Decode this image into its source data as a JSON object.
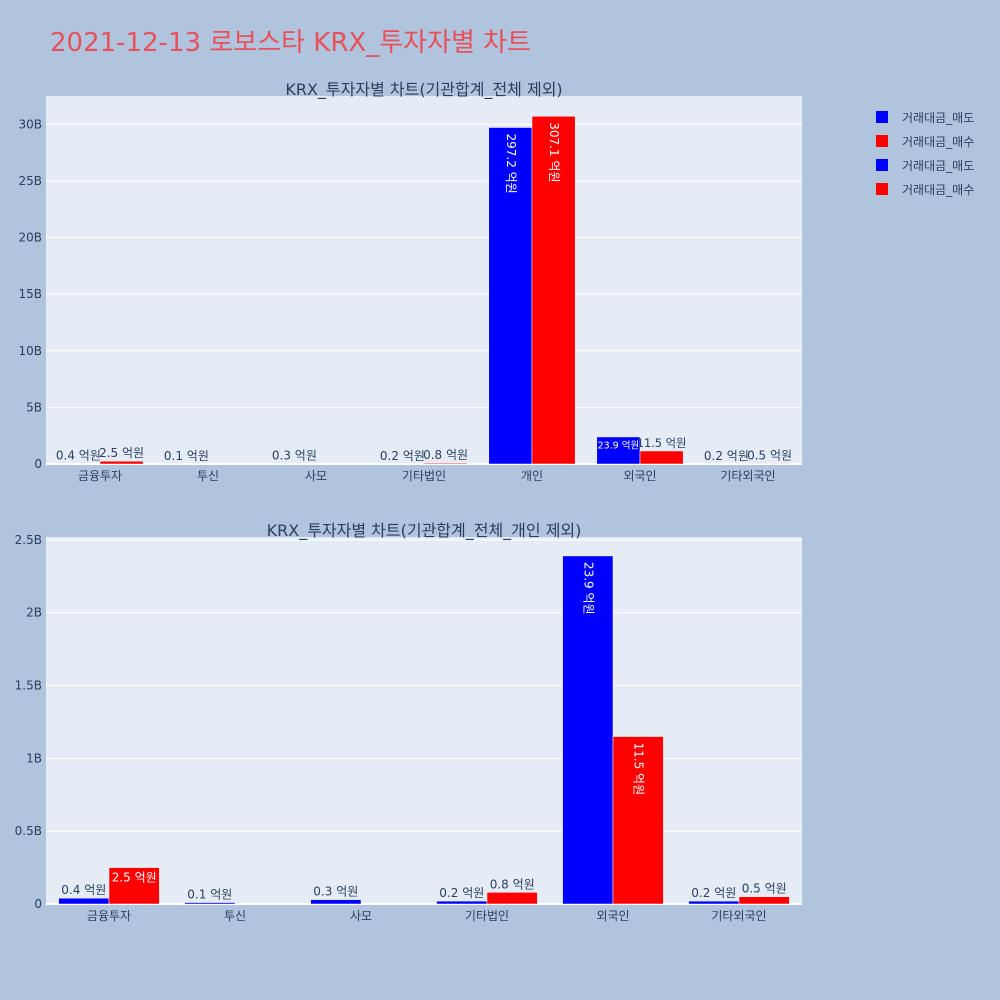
{
  "page": {
    "title": "2021-12-13 로보스타 KRX_투자자별 차트",
    "background": "#b0c4de",
    "plot_background": "#e5ecf6",
    "title_color": "#e8505b"
  },
  "legend": {
    "placement": "right",
    "items": [
      {
        "label": "거래대금_매도",
        "color": "#0000ff"
      },
      {
        "label": "거래대금_매수",
        "color": "#ff0000"
      },
      {
        "label": "거래대금_매도",
        "color": "#0000ff"
      },
      {
        "label": "거래대금_매수",
        "color": "#ff0000"
      }
    ]
  },
  "chart_data": [
    {
      "type": "bar",
      "title": "KRX_투자자별 차트(기관합계_전체 제외)",
      "categories": [
        "금융투자",
        "투신",
        "사모",
        "기타법인",
        "개인",
        "외국인",
        "기타외국인"
      ],
      "ylim": [
        0,
        32.5
      ],
      "yticks": [
        0,
        5,
        10,
        15,
        20,
        25,
        30
      ],
      "ytick_labels": [
        "0",
        "5B",
        "10B",
        "15B",
        "20B",
        "25B",
        "30B"
      ],
      "grid": true,
      "series": [
        {
          "name": "거래대금_매도",
          "color": "#0000ff",
          "values": [
            0.04,
            0.01,
            0.03,
            0.02,
            29.72,
            2.39,
            0.02
          ],
          "labels": [
            "0.4 억원",
            "0.1 억원",
            "0.3 억원",
            "0.2 억원",
            "297.2 억원",
            "23.9 억원",
            "0.2 억원"
          ]
        },
        {
          "name": "거래대금_매수",
          "color": "#ff0000",
          "values": [
            0.25,
            0,
            0,
            0.08,
            30.71,
            1.15,
            0.05
          ],
          "labels": [
            "2.5 억원",
            "",
            "",
            "0.8 억원",
            "307.1 억원",
            "11.5 억원",
            "0.5 억원"
          ]
        }
      ]
    },
    {
      "type": "bar",
      "title": "KRX_투자자별 차트(기관합계_전체_개인 제외)",
      "categories": [
        "금융투자",
        "투신",
        "사모",
        "기타법인",
        "외국인",
        "기타외국인"
      ],
      "ylim": [
        0,
        2.52
      ],
      "yticks": [
        0,
        0.5,
        1,
        1.5,
        2,
        2.5
      ],
      "ytick_labels": [
        "0",
        "0.5B",
        "1B",
        "1.5B",
        "2B",
        "2.5B"
      ],
      "grid": true,
      "series": [
        {
          "name": "거래대금_매도",
          "color": "#0000ff",
          "values": [
            0.04,
            0.01,
            0.03,
            0.02,
            2.39,
            0.02
          ],
          "labels": [
            "0.4 억원",
            "0.1 억원",
            "0.3 억원",
            "0.2 억원",
            "23.9 억원",
            "0.2 억원"
          ]
        },
        {
          "name": "거래대금_매수",
          "color": "#ff0000",
          "values": [
            0.25,
            0,
            0,
            0.08,
            1.15,
            0.05
          ],
          "labels": [
            "2.5 억원",
            "",
            "",
            "0.8 억원",
            "11.5 억원",
            "0.5 억원"
          ]
        }
      ]
    }
  ]
}
